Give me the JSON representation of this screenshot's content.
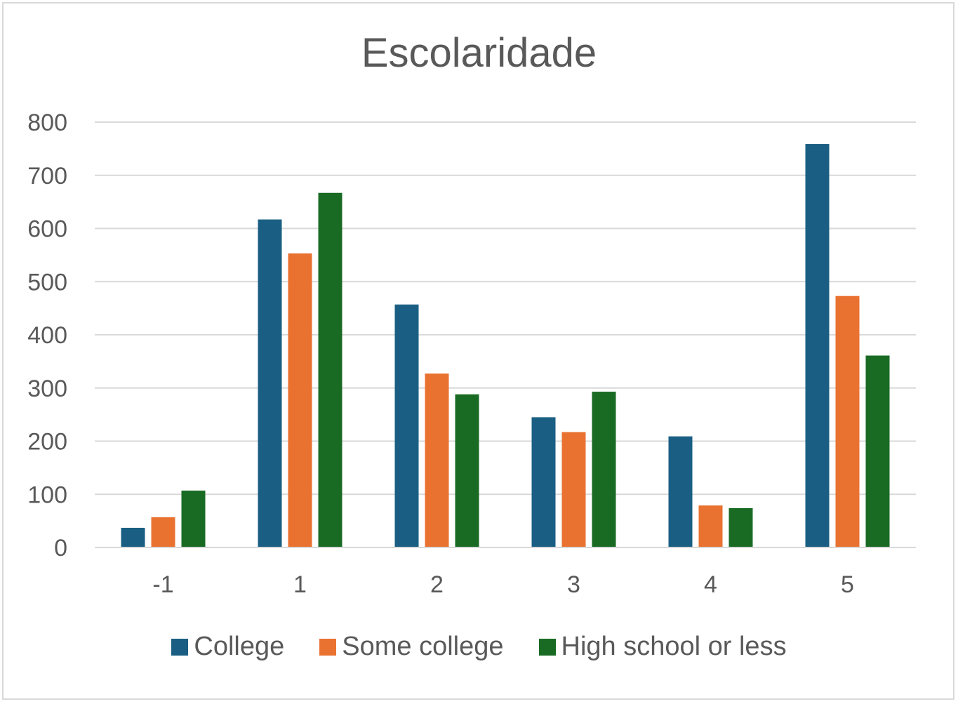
{
  "chart_data": {
    "type": "bar",
    "title": "Escolaridade",
    "categories": [
      "-1",
      "1",
      "2",
      "3",
      "4",
      "5"
    ],
    "series": [
      {
        "name": "College",
        "color": "#1a5f83",
        "values": [
          37,
          617,
          457,
          245,
          209,
          759
        ]
      },
      {
        "name": "Some college",
        "color": "#e97231",
        "values": [
          57,
          553,
          327,
          217,
          79,
          473
        ]
      },
      {
        "name": "High school or less",
        "color": "#196b24",
        "values": [
          107,
          667,
          288,
          293,
          74,
          361
        ]
      }
    ],
    "yticks": [
      "0",
      "100",
      "200",
      "300",
      "400",
      "500",
      "600",
      "700",
      "800"
    ],
    "ylim": [
      0,
      800
    ],
    "xlabel": "",
    "ylabel": "",
    "grid": true,
    "legend": "bottom"
  }
}
